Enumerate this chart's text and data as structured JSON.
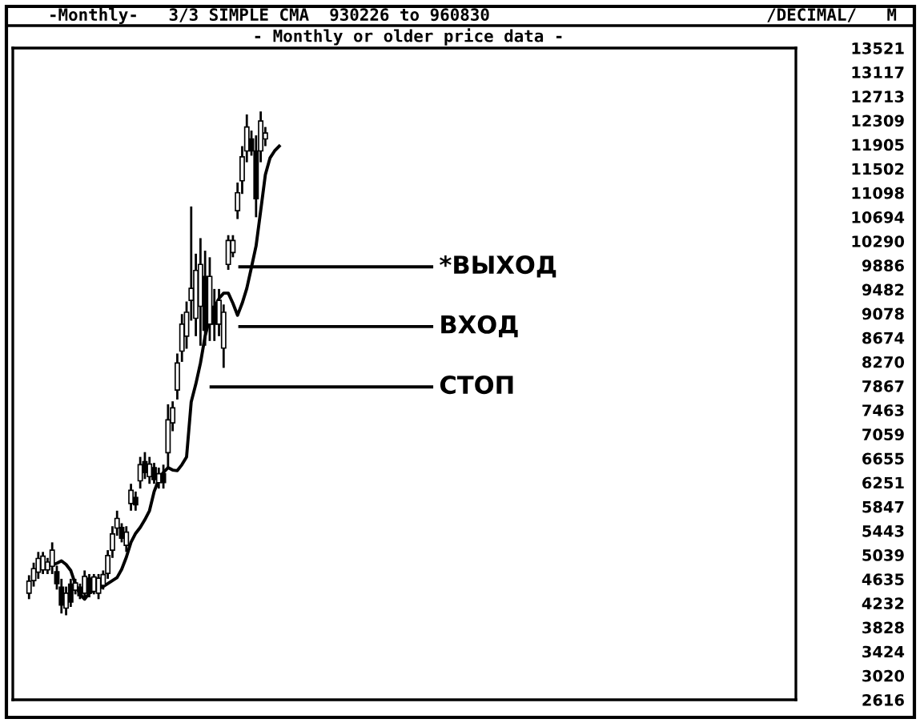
{
  "chart_data": {
    "type": "candlestick",
    "title": "-Monthly-   3/3 SIMPLE CMA  930226 to 960830",
    "subtitle": "- Monthly or older price data -",
    "annotations": [
      "/DECIMAL/",
      "M"
    ],
    "categories": [
      null,
      null,
      null,
      null,
      null,
      null,
      null,
      null,
      null,
      null,
      null,
      null,
      null,
      null,
      null,
      null,
      null,
      null,
      null,
      null,
      null,
      null,
      null,
      null,
      null,
      null,
      null,
      null,
      null,
      null,
      null,
      null,
      null,
      null,
      null,
      null,
      null,
      null,
      null,
      null,
      null,
      null,
      null,
      null,
      null,
      null,
      null,
      null,
      null,
      null,
      null,
      null,
      null,
      null,
      null,
      null,
      null,
      null,
      null,
      null,
      null,
      null,
      null,
      null,
      null,
      null,
      null,
      null,
      null,
      null,
      null,
      null,
      null,
      null,
      null,
      null,
      null,
      null,
      null,
      null,
      null,
      null,
      null,
      null,
      null,
      null,
      null,
      null,
      null,
      null,
      null,
      null,
      null,
      null,
      null,
      null,
      null,
      null,
      null,
      null,
      null,
      null,
      null,
      null,
      null,
      null,
      null,
      null,
      null,
      null,
      null,
      null,
      null,
      null,
      null,
      null,
      null,
      null,
      null,
      null,
      null,
      null,
      null,
      null,
      null,
      null,
      null,
      null,
      null,
      null,
      null,
      null,
      null,
      null,
      null,
      null,
      null,
      null,
      null,
      null,
      null,
      null,
      null,
      null,
      null,
      null,
      null,
      null,
      null,
      null,
      null,
      null,
      null,
      null,
      null,
      null,
      null,
      null,
      null,
      null,
      null,
      null,
      null,
      null,
      null,
      null,
      null,
      null,
      null
    ],
    "color": "#000000",
    "ohlc": [
      null,
      null,
      null,
      [
        4400,
        4700,
        4300,
        4600
      ],
      [
        4610,
        4910,
        4510,
        4810
      ],
      [
        4750,
        5090,
        4640,
        4980
      ],
      [
        4790,
        5090,
        4720,
        5020
      ],
      [
        4790,
        4990,
        4720,
        4920
      ],
      [
        4850,
        5250,
        4720,
        5120
      ],
      [
        4760,
        4860,
        4460,
        4560
      ],
      [
        4500,
        4640,
        4060,
        4200
      ],
      [
        4150,
        4510,
        4030,
        4400
      ],
      [
        4550,
        4640,
        4170,
        4250
      ],
      [
        4450,
        4640,
        4380,
        4570
      ],
      [
        4500,
        4560,
        4300,
        4360
      ],
      [
        4400,
        4780,
        4300,
        4680
      ],
      [
        4650,
        4720,
        4330,
        4400
      ],
      [
        4430,
        4720,
        4380,
        4670
      ],
      [
        4400,
        4720,
        4300,
        4650
      ],
      [
        4530,
        4780,
        4460,
        4710
      ],
      [
        4730,
        5120,
        4640,
        5030
      ],
      [
        5120,
        5520,
        4990,
        5390
      ],
      [
        5490,
        5780,
        5360,
        5650
      ],
      [
        5500,
        5570,
        5250,
        5320
      ],
      [
        5200,
        5520,
        5090,
        5420
      ],
      [
        5900,
        6230,
        5780,
        6120
      ],
      [
        6000,
        6100,
        5780,
        5880
      ],
      [
        6280,
        6680,
        6150,
        6550
      ],
      [
        6600,
        6760,
        6310,
        6420
      ],
      [
        6350,
        6680,
        6230,
        6560
      ],
      [
        6500,
        6580,
        6230,
        6300
      ],
      [
        6250,
        6500,
        6150,
        6400
      ],
      [
        6400,
        6550,
        6150,
        6250
      ],
      [
        6750,
        7560,
        6500,
        7300
      ],
      [
        7250,
        7610,
        7110,
        7500
      ],
      [
        7800,
        8410,
        7640,
        8250
      ],
      [
        8450,
        9070,
        8270,
        8900
      ],
      [
        8700,
        9280,
        8490,
        9100
      ],
      [
        9300,
        10870,
        8960,
        9500
      ],
      [
        9000,
        10080,
        8700,
        9800
      ],
      [
        9200,
        10340,
        8540,
        9900
      ],
      [
        9700,
        10130,
        8540,
        8800
      ],
      [
        8900,
        10020,
        8620,
        9700
      ],
      [
        9200,
        9490,
        8620,
        8900
      ],
      [
        8900,
        9490,
        8700,
        9300
      ],
      [
        8500,
        9230,
        8170,
        9100
      ],
      [
        9900,
        10390,
        9810,
        10300
      ],
      [
        10100,
        10390,
        10020,
        10300
      ],
      [
        10800,
        11270,
        10660,
        11100
      ],
      [
        11300,
        11880,
        11080,
        11700
      ],
      [
        11800,
        12410,
        11610,
        12200
      ],
      [
        12000,
        12140,
        11720,
        11800
      ],
      [
        11800,
        12060,
        10690,
        11000
      ],
      [
        11800,
        12460,
        11610,
        12300
      ],
      [
        12000,
        12200,
        11880,
        12100
      ],
      null,
      null,
      null,
      null,
      null,
      null,
      null,
      null,
      null,
      null,
      null,
      null,
      null,
      null,
      null,
      null,
      null,
      null,
      null,
      null,
      null,
      null,
      null,
      null,
      null,
      null,
      null,
      null,
      null,
      null,
      null,
      null,
      null,
      null,
      null,
      null,
      null,
      null,
      null,
      null,
      null,
      null,
      null,
      null,
      null,
      null,
      null,
      null,
      null,
      null,
      null,
      null,
      null,
      null,
      null,
      null,
      null,
      null,
      null,
      null,
      null,
      null,
      null,
      null,
      null,
      null,
      null,
      null,
      null,
      null,
      null,
      null,
      null,
      null,
      null,
      null,
      null,
      null,
      null,
      null,
      null,
      null,
      null,
      null,
      null,
      null,
      null,
      null,
      null,
      null,
      null,
      null,
      null,
      null,
      null,
      null,
      null,
      null,
      null,
      null,
      null,
      null,
      null,
      null,
      null,
      null,
      null,
      null,
      null,
      null,
      null,
      null,
      null,
      null
    ],
    "series": [
      {
        "type": "line",
        "color": "#000000",
        "values": [
          null,
          null,
          null,
          null,
          null,
          null,
          null,
          null,
          4870,
          4900,
          4940,
          4880,
          4780,
          4550,
          4380,
          4300,
          4400,
          4450,
          4480,
          4510,
          4560,
          4610,
          4660,
          4800,
          5000,
          5250,
          5400,
          5500,
          5630,
          5780,
          6100,
          6300,
          6420,
          6500,
          6460,
          6450,
          6550,
          6680,
          7600,
          7900,
          8250,
          8700,
          9000,
          9180,
          9330,
          9420,
          9420,
          9250,
          9050,
          9250,
          9500,
          9850,
          10210,
          10800,
          11400,
          11680,
          11800,
          11880,
          null,
          null,
          null,
          null,
          null,
          null,
          null,
          null,
          null,
          null,
          null,
          null,
          null,
          null,
          null,
          null,
          null,
          null,
          null,
          null,
          null,
          null,
          null,
          null,
          null,
          null,
          null,
          null,
          null,
          null,
          null,
          null,
          null,
          null,
          null,
          null,
          null,
          null,
          null,
          null,
          null,
          null,
          null,
          null,
          null,
          null,
          null,
          null,
          null,
          null,
          null,
          null,
          null,
          null,
          null,
          null,
          null,
          null,
          null,
          null,
          null,
          null,
          null,
          null,
          null,
          null,
          null,
          null,
          null,
          null,
          null,
          null,
          null,
          null,
          null,
          null,
          null,
          null,
          null,
          null,
          null,
          null,
          null,
          null,
          null,
          null,
          null,
          null,
          null,
          null,
          null,
          null,
          null,
          null,
          null,
          null,
          null,
          null,
          null,
          null,
          null,
          null,
          null,
          null,
          null,
          null,
          null,
          null,
          null,
          null,
          null
        ]
      }
    ],
    "ref_lines": [
      {
        "axis": "y",
        "value": 9860,
        "label": "*ВЫХОД"
      },
      {
        "axis": "y",
        "value": 8860,
        "label": "ВХОД"
      },
      {
        "axis": "y",
        "value": 7850,
        "label": "СТОП"
      }
    ],
    "ylim": [
      2616,
      13521
    ],
    "yticks": [
      13521,
      13117,
      12713,
      12309,
      11905,
      11502,
      11098,
      10694,
      10290,
      9886,
      9482,
      9078,
      8674,
      8270,
      7867,
      7463,
      7059,
      6655,
      6251,
      5847,
      5443,
      5039,
      4635,
      4232,
      3828,
      3424,
      3020,
      2616
    ],
    "grid": false,
    "legend": false
  }
}
